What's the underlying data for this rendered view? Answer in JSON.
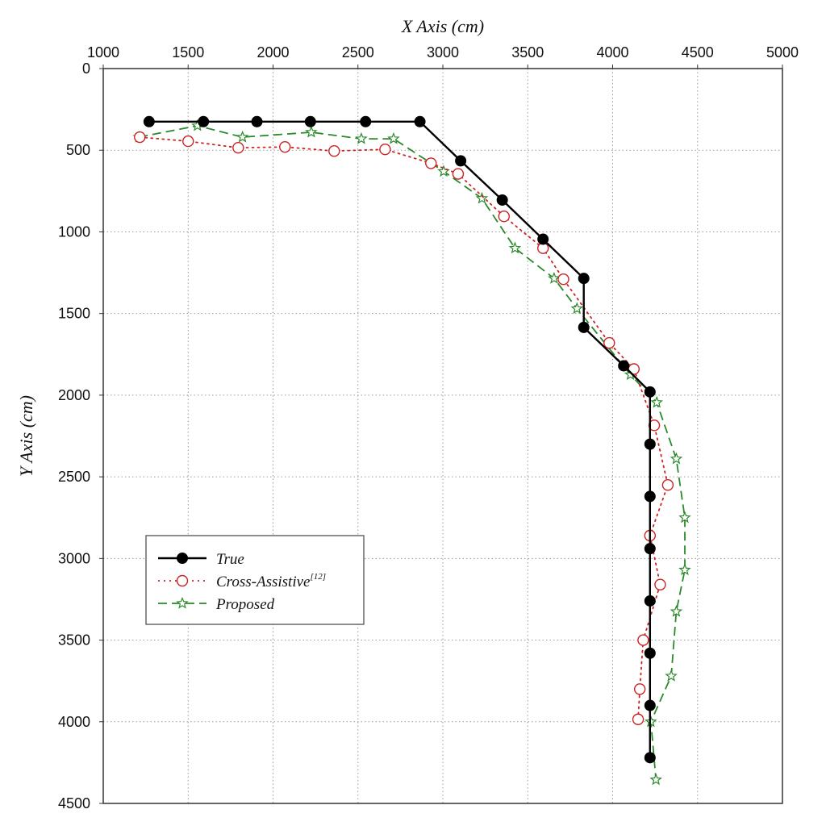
{
  "chart_data": {
    "type": "line",
    "title": "",
    "xlabel": "X Axis (cm)",
    "ylabel": "Y Axis (cm)",
    "xlim": [
      1000,
      5000
    ],
    "ylim": [
      0,
      4500
    ],
    "y_inverted": true,
    "x_axis_position": "top",
    "x_ticks": [
      "1000",
      "1500",
      "2000",
      "2500",
      "3000",
      "3500",
      "4000",
      "4500",
      "5000"
    ],
    "y_ticks": [
      "0",
      "500",
      "1000",
      "1500",
      "2000",
      "2500",
      "3000",
      "3500",
      "4000",
      "4500"
    ],
    "grid": true,
    "legend_position": "lower-left",
    "series": [
      {
        "name": "True",
        "color": "#000000",
        "line_style": "solid",
        "marker": "filled-circle",
        "points": [
          [
            1270,
            325
          ],
          [
            1590,
            325
          ],
          [
            1905,
            325
          ],
          [
            2220,
            325
          ],
          [
            2545,
            325
          ],
          [
            2865,
            325
          ],
          [
            3105,
            565
          ],
          [
            3350,
            805
          ],
          [
            3590,
            1045
          ],
          [
            3830,
            1285
          ],
          [
            3830,
            1585
          ],
          [
            4065,
            1820
          ],
          [
            4220,
            1980
          ],
          [
            4220,
            2300
          ],
          [
            4220,
            2620
          ],
          [
            4220,
            2940
          ],
          [
            4220,
            3260
          ],
          [
            4220,
            3580
          ],
          [
            4220,
            3900
          ],
          [
            4220,
            4220
          ]
        ]
      },
      {
        "name": "Cross-Assistive",
        "name_superscript": "[12]",
        "color": "#cc2222",
        "line_style": "dotted",
        "marker": "open-circle",
        "points": [
          [
            1215,
            420
          ],
          [
            1500,
            445
          ],
          [
            1795,
            485
          ],
          [
            2070,
            480
          ],
          [
            2360,
            505
          ],
          [
            2660,
            495
          ],
          [
            2930,
            580
          ],
          [
            3090,
            645
          ],
          [
            3360,
            905
          ],
          [
            3590,
            1100
          ],
          [
            3710,
            1290
          ],
          [
            3980,
            1680
          ],
          [
            4125,
            1840
          ],
          [
            4245,
            2185
          ],
          [
            4325,
            2550
          ],
          [
            4220,
            2860
          ],
          [
            4280,
            3160
          ],
          [
            4180,
            3500
          ],
          [
            4160,
            3800
          ],
          [
            4150,
            3985
          ]
        ]
      },
      {
        "name": "Proposed",
        "color": "#2a8a2a",
        "line_style": "dashed",
        "marker": "open-star",
        "points": [
          [
            1210,
            420
          ],
          [
            1555,
            350
          ],
          [
            1820,
            420
          ],
          [
            2225,
            390
          ],
          [
            2520,
            430
          ],
          [
            2710,
            430
          ],
          [
            3005,
            630
          ],
          [
            3230,
            795
          ],
          [
            3425,
            1100
          ],
          [
            3655,
            1285
          ],
          [
            3790,
            1470
          ],
          [
            4105,
            1875
          ],
          [
            4260,
            2045
          ],
          [
            4375,
            2390
          ],
          [
            4425,
            2750
          ],
          [
            4425,
            3070
          ],
          [
            4375,
            3325
          ],
          [
            4345,
            3720
          ],
          [
            4225,
            4000
          ],
          [
            4255,
            4355
          ]
        ]
      }
    ]
  }
}
